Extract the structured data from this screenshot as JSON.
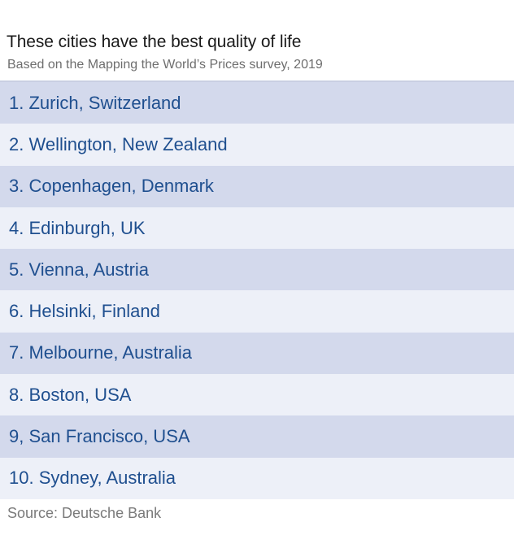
{
  "title": "These cities have the best quality of life",
  "subtitle": "Based on the Mapping the World’s Prices survey, 2019",
  "cities": [
    "1. Zurich, Switzerland",
    "2. Wellington, New Zealand",
    "3. Copenhagen, Denmark",
    "4. Edinburgh, UK",
    "5. Vienna, Austria",
    "6. Helsinki, Finland",
    "7. Melbourne, Australia",
    "8. Boston, USA",
    "9, San Francisco, USA",
    "10. Sydney, Australia"
  ],
  "source": "Source: Deutsche Bank",
  "colors": {
    "row_dark": "#d3d9ec",
    "row_light": "#edf0f8",
    "row_text": "#1f4f8f"
  }
}
